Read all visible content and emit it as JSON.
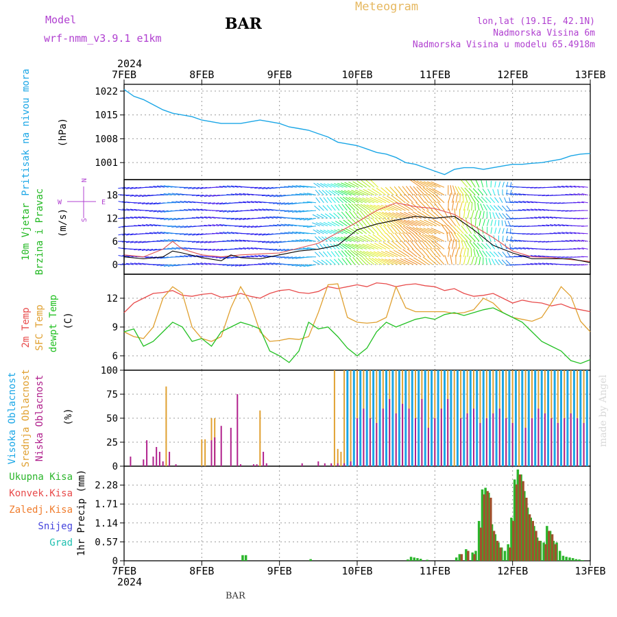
{
  "header": {
    "model_label": "Model",
    "model_name": "wrf-nmm_v3.9.1  e1km",
    "station": "BAR",
    "chart_title": "Meteogram",
    "coords": "lon,lat (19.1E, 42.1N)",
    "altitude": "Nadmorska Visina 6m",
    "model_altitude": "Nadmorska Visina u modelu 65.4918m",
    "footer_station": "BAR",
    "credit": "made by Angel"
  },
  "colors": {
    "pressure": "#1aa6e6",
    "temp2m": "#e84a4a",
    "sfc_temp": "#e0a030",
    "dewpt": "#22c022",
    "cloud_high": "#1aa6e6",
    "cloud_mid": "#e0a030",
    "cloud_low": "#b0208c",
    "precip_total": "#2bb52b",
    "precip_conv": "#a0522d",
    "wind_purple": "#8a2be2",
    "title_purple": "#b040d0",
    "title_orange": "#e6b860"
  },
  "chart_data": [
    {
      "id": "time-axis",
      "type": "axis",
      "year_top": "2024",
      "year_bottom": "2024",
      "ticks": [
        "7FEB",
        "8FEB",
        "9FEB",
        "10FEB",
        "11FEB",
        "12FEB",
        "13FEB"
      ],
      "xlim_hours": [
        0,
        144
      ]
    },
    {
      "id": "pressure",
      "type": "line",
      "ylabel": "Pritisak na nivou mora",
      "yunit": "(hPa)",
      "yticks": [
        "1022",
        "1015",
        "1008",
        "1001"
      ],
      "ylim": [
        996,
        1024
      ],
      "grid": true,
      "series": [
        {
          "x": [
            0,
            3,
            6,
            9,
            12,
            15,
            18,
            21,
            24,
            27,
            30,
            33,
            36,
            39,
            42,
            45,
            48,
            51,
            54,
            57,
            60,
            63,
            66,
            69,
            72,
            75,
            78,
            81,
            84,
            87,
            90,
            93,
            96,
            99,
            102,
            105,
            108,
            111,
            114,
            117,
            120,
            123,
            126,
            129,
            132,
            135,
            138,
            141,
            144
          ],
          "y": [
            1022.5,
            1020.5,
            1019.5,
            1018,
            1016.5,
            1015.5,
            1015,
            1014.5,
            1013.5,
            1013,
            1012.5,
            1012.5,
            1012.5,
            1013,
            1013.5,
            1013,
            1012.5,
            1011.5,
            1011,
            1010.5,
            1009.5,
            1008.5,
            1007,
            1006.5,
            1006,
            1005,
            1004,
            1003.5,
            1002.5,
            1001,
            1000.5,
            999.5,
            998.5,
            997.5,
            999,
            999.5,
            999.5,
            999,
            999.5,
            1000,
            1000.5,
            1000.5,
            1000.8,
            1001,
            1001.5,
            1002,
            1003,
            1003.5,
            1003.7
          ]
        }
      ]
    },
    {
      "id": "wind",
      "type": "line",
      "ylabel": "10m Vjetar Brzina i Pravac",
      "yunit": "(m/s)",
      "compass": {
        "n": "N",
        "s": "S",
        "w": "W",
        "e": "E"
      },
      "yticks": [
        "0",
        "6",
        "12",
        "18"
      ],
      "ylim": [
        -2.5,
        22
      ],
      "grid": true,
      "series": [
        {
          "name": "speed",
          "x": [
            0,
            6,
            12,
            15,
            18,
            24,
            30,
            33,
            36,
            42,
            48,
            54,
            60,
            66,
            72,
            78,
            84,
            90,
            96,
            102,
            108,
            114,
            120,
            126,
            132,
            138,
            144
          ],
          "y": [
            2,
            1.5,
            2,
            3.5,
            3,
            1.8,
            1,
            2.5,
            1.8,
            1.5,
            2.5,
            3.5,
            4,
            5,
            9,
            10.5,
            11.5,
            12.5,
            12,
            12.5,
            9,
            5,
            3,
            1.5,
            1.5,
            1.5,
            0.5
          ]
        },
        {
          "name": "gust",
          "x": [
            0,
            6,
            12,
            15,
            18,
            24,
            30,
            36,
            48,
            60,
            72,
            78,
            84,
            90,
            96,
            102,
            108,
            114,
            120,
            126,
            132,
            144
          ],
          "y": [
            2.5,
            2,
            4,
            6,
            4,
            2.5,
            2,
            2.5,
            3,
            5.5,
            11,
            14,
            16,
            15,
            14.5,
            13,
            10,
            7,
            3.5,
            2,
            1.8,
            0.8
          ]
        }
      ]
    },
    {
      "id": "temperature",
      "type": "line",
      "ylabels": [
        "2m Temp",
        "SFC Temp",
        "dewpt Temp"
      ],
      "yunit": "(C)",
      "yticks": [
        "12",
        "9",
        "6"
      ],
      "ylim": [
        4.5,
        14.5
      ],
      "grid": true,
      "series": [
        {
          "name": "2m Temp",
          "x": [
            0,
            3,
            6,
            9,
            12,
            15,
            18,
            21,
            24,
            27,
            30,
            33,
            36,
            39,
            42,
            45,
            48,
            51,
            54,
            57,
            60,
            63,
            66,
            69,
            72,
            75,
            78,
            81,
            84,
            87,
            90,
            93,
            96,
            99,
            102,
            105,
            108,
            111,
            114,
            117,
            120,
            123,
            126,
            129,
            132,
            135,
            138,
            141,
            144
          ],
          "y": [
            10.5,
            11.5,
            12,
            12.5,
            12.6,
            12.8,
            12.3,
            12.2,
            12.4,
            12.5,
            12.1,
            12.2,
            12.5,
            12.2,
            12,
            12.5,
            12.8,
            12.9,
            12.6,
            12.5,
            12.7,
            13.2,
            13,
            13.2,
            13.4,
            13.2,
            13.6,
            13.5,
            13.2,
            13.4,
            13.5,
            13.3,
            13.2,
            12.8,
            13,
            12.5,
            12.2,
            12.3,
            12.5,
            12,
            11.5,
            11.8,
            11.6,
            11.5,
            11.2,
            11.4,
            11,
            10.8,
            10.6
          ]
        },
        {
          "name": "SFC Temp",
          "x": [
            0,
            3,
            6,
            9,
            12,
            15,
            18,
            21,
            24,
            27,
            30,
            33,
            36,
            39,
            42,
            45,
            48,
            51,
            54,
            57,
            60,
            63,
            66,
            69,
            72,
            75,
            78,
            81,
            84,
            87,
            90,
            93,
            96,
            99,
            102,
            105,
            108,
            111,
            114,
            117,
            120,
            123,
            126,
            129,
            132,
            135,
            138,
            141,
            144
          ],
          "y": [
            8.5,
            8,
            7.8,
            9,
            12,
            13.2,
            12.5,
            9,
            7.8,
            7.5,
            8,
            11,
            13.2,
            11.5,
            8.5,
            7.5,
            7.6,
            7.8,
            7.7,
            8,
            10.5,
            13.4,
            13.5,
            10,
            9.5,
            9.4,
            9.5,
            10,
            13.2,
            11,
            10.6,
            10.6,
            10.6,
            10.6,
            10.4,
            10.5,
            10.8,
            12,
            11.5,
            10.5,
            10,
            9.8,
            9.6,
            10,
            11.5,
            13.2,
            12.2,
            9.6,
            8.5
          ]
        },
        {
          "name": "dewpt Temp",
          "x": [
            0,
            3,
            6,
            9,
            12,
            15,
            18,
            21,
            24,
            27,
            30,
            33,
            36,
            39,
            42,
            45,
            48,
            51,
            54,
            57,
            60,
            63,
            66,
            69,
            72,
            75,
            78,
            81,
            84,
            87,
            90,
            93,
            96,
            99,
            102,
            105,
            108,
            111,
            114,
            117,
            120,
            123,
            126,
            129,
            132,
            135,
            138,
            141,
            144
          ],
          "y": [
            8.5,
            8.8,
            7,
            7.5,
            8.5,
            9.5,
            9,
            7.5,
            7.8,
            7,
            8.5,
            9,
            9.5,
            9.2,
            8.8,
            6.5,
            6,
            5.3,
            6.5,
            9.5,
            8.8,
            9,
            8,
            6.8,
            6,
            6.8,
            8.5,
            9.5,
            9,
            9.4,
            9.8,
            10,
            9.8,
            10.3,
            10.5,
            10.2,
            10.5,
            10.8,
            11,
            10.5,
            10,
            9.5,
            8.5,
            7.5,
            7,
            6.5,
            5.5,
            5.2,
            5.6
          ]
        }
      ]
    },
    {
      "id": "clouds",
      "type": "bar",
      "ylabels": [
        "Visoka Oblacnost",
        "Srednja Oblacnost",
        "Niska Oblacnost"
      ],
      "yunit": "(%)",
      "yticks": [
        "0",
        "25",
        "50",
        "75",
        "100"
      ],
      "ylim": [
        0,
        100
      ],
      "grid": true,
      "series": [
        {
          "name": "Niska Oblacnost",
          "x": [
            2,
            6,
            7,
            9,
            10,
            11,
            12,
            14,
            16,
            27,
            28,
            30,
            33,
            35,
            36,
            40,
            41,
            43,
            44,
            55,
            60,
            62,
            64,
            66,
            68,
            70,
            72,
            74,
            76,
            78,
            80,
            82,
            84,
            86,
            88,
            90,
            92,
            94,
            96,
            98,
            100,
            104,
            106,
            108,
            110,
            112,
            114,
            116,
            118,
            120,
            124,
            126,
            128,
            130,
            132,
            134,
            136,
            138,
            140,
            142
          ],
          "y": [
            10,
            7,
            27,
            10,
            20,
            15,
            5,
            15,
            2,
            27,
            30,
            42,
            40,
            75,
            2,
            2,
            2,
            15,
            3,
            3,
            5,
            3,
            3,
            3,
            3,
            5,
            50,
            60,
            50,
            45,
            60,
            70,
            55,
            65,
            60,
            50,
            70,
            40,
            50,
            60,
            70,
            50,
            55,
            60,
            45,
            50,
            55,
            60,
            50,
            45,
            40,
            50,
            60,
            55,
            50,
            45,
            50,
            55,
            50,
            45
          ]
        },
        {
          "name": "Srednja Oblacnost",
          "x": [
            13,
            24,
            25,
            27,
            28,
            42,
            65,
            66,
            67,
            68,
            70,
            72,
            74,
            76,
            78,
            80,
            82,
            84,
            86,
            88,
            90,
            92,
            94,
            96,
            98,
            100,
            102,
            104,
            106,
            108,
            110,
            112,
            114,
            116,
            118,
            120,
            122,
            124,
            126,
            128,
            130,
            132,
            134,
            136,
            138,
            140,
            142
          ],
          "y": [
            83,
            28,
            28,
            50,
            50,
            58,
            100,
            18,
            15,
            100,
            100,
            100,
            100,
            100,
            100,
            100,
            100,
            100,
            100,
            100,
            100,
            100,
            100,
            100,
            100,
            100,
            100,
            100,
            100,
            100,
            100,
            100,
            100,
            100,
            100,
            100,
            100,
            100,
            100,
            100,
            100,
            100,
            100,
            100,
            100,
            100,
            100
          ]
        },
        {
          "name": "Visoka Oblacnost",
          "x": [
            69,
            71,
            73,
            75,
            77,
            79,
            81,
            83,
            85,
            87,
            89,
            91,
            93,
            95,
            97,
            99,
            101,
            103,
            105,
            107,
            109,
            111,
            113,
            115,
            117,
            119,
            121,
            123,
            125,
            127,
            129,
            131,
            133,
            135,
            137,
            139,
            141,
            143
          ],
          "y": [
            100,
            100,
            100,
            100,
            100,
            100,
            100,
            100,
            100,
            100,
            100,
            100,
            100,
            100,
            100,
            100,
            100,
            100,
            100,
            100,
            100,
            100,
            100,
            100,
            100,
            100,
            100,
            100,
            100,
            100,
            100,
            100,
            100,
            100,
            100,
            100,
            100,
            100
          ]
        }
      ]
    },
    {
      "id": "precip",
      "type": "bar",
      "ylabel": "1hr Precip (mm)",
      "legend": [
        "Ukupna Kisa",
        "Konvek.Kisa",
        "Zaledj.Kisa",
        "Snijeg",
        "Grad"
      ],
      "legend_colors": [
        "#2bb52b",
        "#e84a4a",
        "#f07c2c",
        "#4444dd",
        "#20c0b0"
      ],
      "yticks": [
        "0",
        "0.57",
        "1.14",
        "1.71",
        "2.28"
      ],
      "ylim": [
        0,
        2.85
      ],
      "grid": true,
      "series": [
        {
          "name": "Ukupna Kisa",
          "x": [
            37,
            38,
            58,
            88,
            89,
            90,
            91,
            92,
            94,
            103,
            104,
            106,
            108,
            109,
            110,
            111,
            112,
            113,
            114,
            115,
            116,
            117,
            118,
            119,
            120,
            121,
            122,
            123,
            124,
            125,
            126,
            127,
            128,
            129,
            130,
            131,
            132,
            133,
            134,
            135,
            136,
            137,
            138,
            139,
            140,
            141,
            142
          ],
          "y": [
            0.17,
            0.17,
            0.05,
            0.04,
            0.12,
            0.1,
            0.08,
            0.06,
            0.03,
            0.1,
            0.2,
            0.35,
            0.25,
            0.3,
            1.2,
            2.15,
            2.2,
            2.05,
            1.1,
            0.8,
            0.55,
            0.4,
            0.3,
            0.5,
            1.3,
            2.45,
            2.75,
            2.6,
            2.1,
            1.6,
            1.3,
            1.05,
            0.7,
            0.6,
            0.55,
            1.05,
            0.9,
            0.6,
            0.55,
            0.3,
            0.15,
            0.12,
            0.1,
            0.08,
            0.05,
            0.04,
            0.02
          ]
        },
        {
          "name": "Konvek.Kisa",
          "x": [
            104,
            106,
            108,
            110,
            111,
            112,
            113,
            114,
            115,
            116,
            119,
            120,
            121,
            122,
            123,
            124,
            125,
            126,
            127,
            128,
            130,
            131,
            132,
            133
          ],
          "y": [
            0.2,
            0.3,
            0.2,
            1.0,
            2.0,
            2.1,
            1.9,
            0.9,
            0.6,
            0.4,
            0.4,
            1.2,
            2.3,
            2.6,
            2.4,
            1.9,
            1.4,
            1.2,
            0.9,
            0.6,
            0.5,
            0.9,
            0.8,
            0.5
          ]
        }
      ]
    }
  ]
}
